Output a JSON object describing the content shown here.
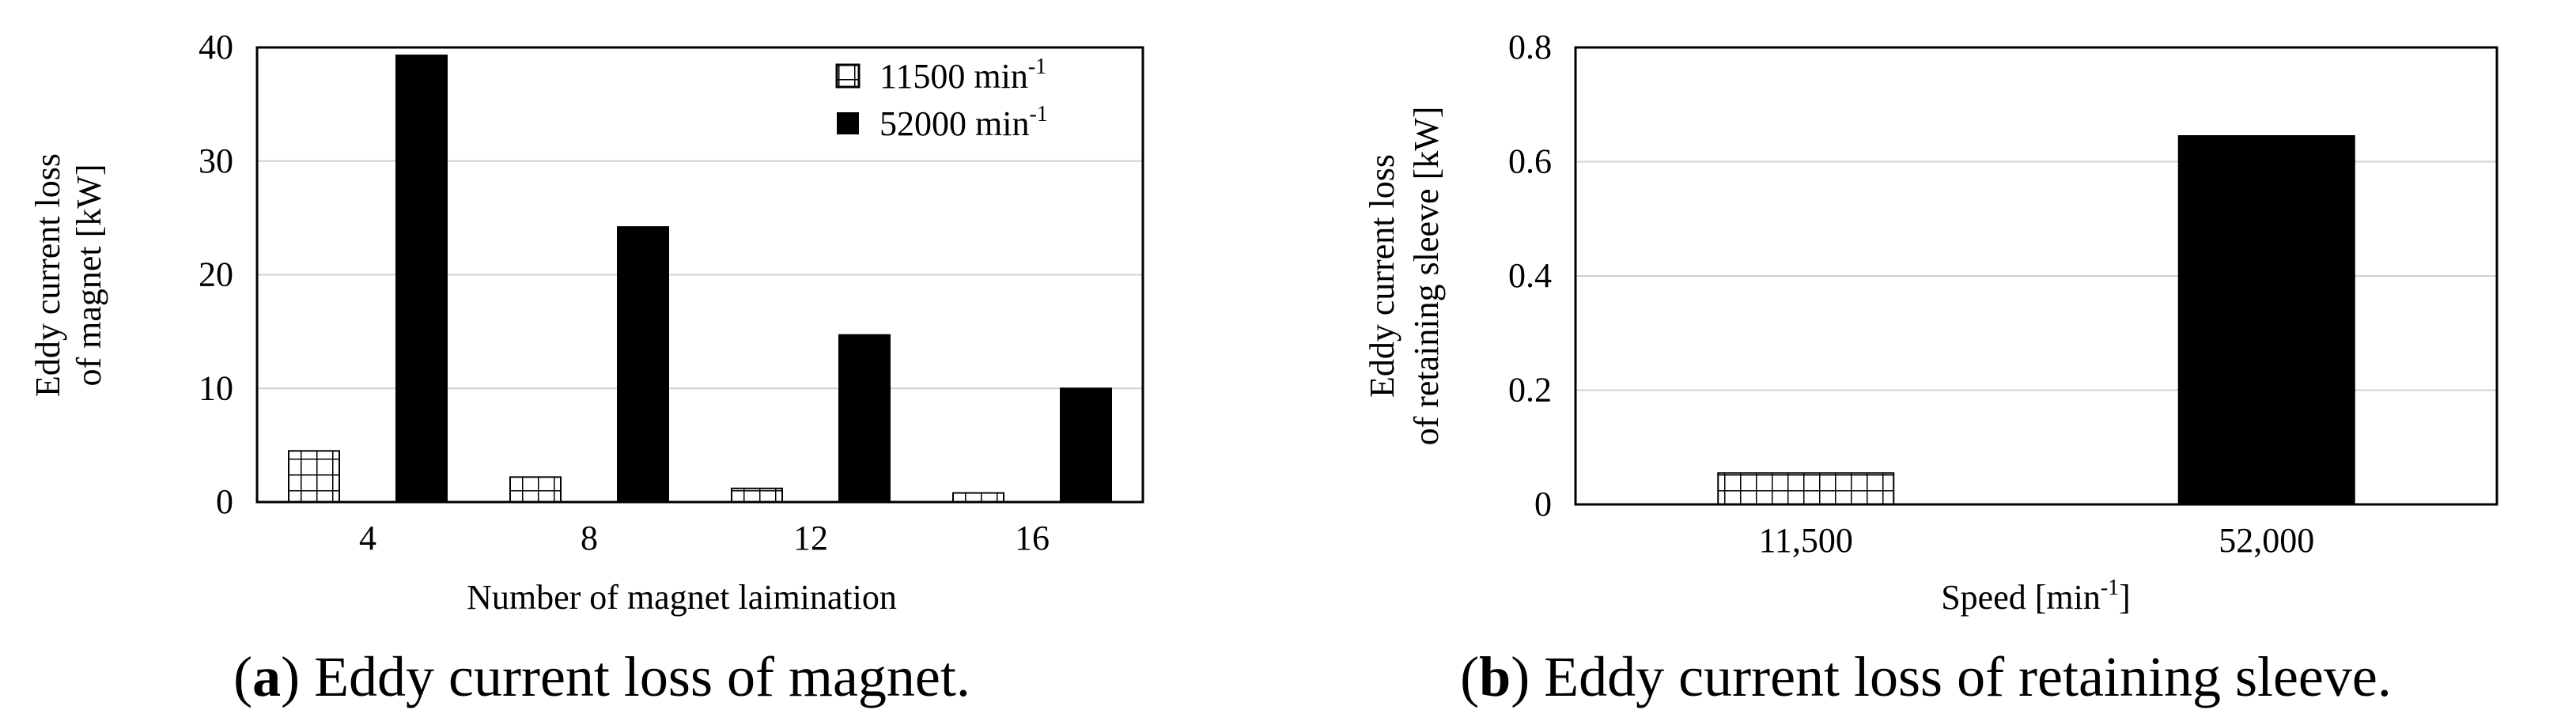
{
  "colors": {
    "dark_bar": "#000000",
    "grid": "#d0d0d0",
    "hatch_line": "#000000",
    "background": "#ffffff"
  },
  "chart_data": [
    {
      "type": "bar",
      "title": "",
      "caption": {
        "label": "a",
        "text": "Eddy current loss of magnet."
      },
      "xlabel": "Number of magnet laimination",
      "ylabel_lines": [
        "Eddy current loss",
        "of magnet [kW]"
      ],
      "categories": [
        "4",
        "8",
        "12",
        "16"
      ],
      "ylim": [
        0,
        40
      ],
      "yticks": [
        "0",
        "10",
        "20",
        "30",
        "40"
      ],
      "series": [
        {
          "name": "11500 min",
          "sup": "-1",
          "pattern": "grid",
          "values": [
            4.5,
            2.2,
            1.2,
            0.8
          ]
        },
        {
          "name": "52000 min",
          "sup": "-1",
          "pattern": "solid",
          "values": [
            39.3,
            24.2,
            14.7,
            10.0
          ]
        }
      ],
      "legend_position": "top-right",
      "grid": true
    },
    {
      "type": "bar",
      "title": "",
      "caption": {
        "label": "b",
        "text": "Eddy current loss of retaining sleeve."
      },
      "xlabel_parts": {
        "pre": "Speed [min",
        "sup": "-1",
        "post": "]"
      },
      "ylabel_lines": [
        "Eddy current loss",
        "of retaining sleeve [kW]"
      ],
      "categories": [
        "11,500",
        "52,000"
      ],
      "ylim": [
        0,
        0.8
      ],
      "yticks": [
        "0",
        "0.2",
        "0.4",
        "0.6",
        "0.8"
      ],
      "values": [
        0.055,
        0.645
      ],
      "patterns": [
        "grid",
        "solid"
      ],
      "grid": true
    }
  ]
}
